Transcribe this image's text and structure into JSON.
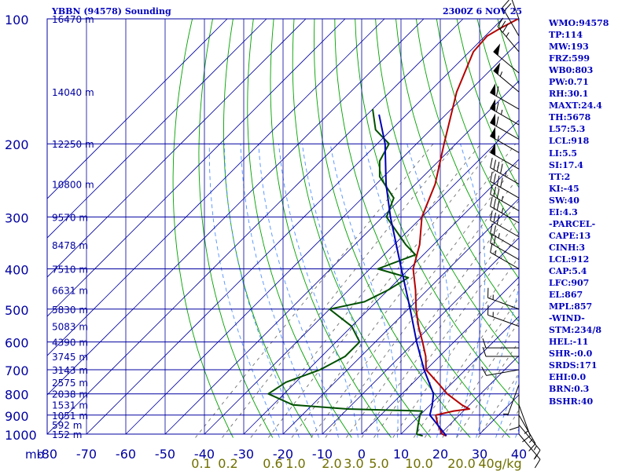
{
  "header": {
    "station_title": "YBBN (94578) Sounding",
    "valid_time": "2300Z  6 NOV 25"
  },
  "indices": [
    "WMO:94578",
    "TP:114",
    "MW:193",
    "FRZ:599",
    "WB0:803",
    "PW:0.71",
    "RH:30.1",
    "MAXT:24.4",
    "TH:5678",
    "L57:5.3",
    "LCL:918",
    "LI:5.5",
    "SI:17.4",
    "TT:2",
    "KI:-45",
    "SW:40",
    "EI:4.3",
    "-PARCEL-",
    "CAPE:13",
    "CINH:3",
    "LCL:912",
    "CAP:5.4",
    "LFC:907",
    "EL:867",
    "MPL:857",
    "-WIND-",
    "STM:234/8",
    "HEL:-11",
    "SHR-:0.0",
    "SRDS:171",
    "EHI:0.0",
    "BRN:0.3",
    "BSHR:40"
  ],
  "chart_data": {
    "type": "line",
    "title": "YBBN (94578) Sounding",
    "x_axis": {
      "label": "",
      "unit_label": "mb",
      "range": [
        -80,
        40
      ],
      "ticks": [
        -80,
        -70,
        -60,
        -50,
        -40,
        -30,
        -20,
        -10,
        0,
        10,
        20,
        30,
        40
      ],
      "tick_labels": [
        "-80",
        "-70",
        "-60",
        "-50",
        "-40",
        "-30",
        "-20",
        "-10",
        "0",
        "10",
        "20",
        "30",
        "40"
      ]
    },
    "y_axis": {
      "label": "",
      "scale": "log",
      "range": [
        1000,
        100
      ],
      "ticks": [
        100,
        200,
        300,
        400,
        500,
        600,
        700,
        800,
        900,
        1000
      ],
      "tick_labels": [
        "100",
        "200",
        "300",
        "400",
        "500",
        "600",
        "700",
        "800",
        "900",
        "1000"
      ]
    },
    "height_labels": [
      {
        "p": 100,
        "text": "16470 m"
      },
      {
        "p": 150,
        "text": "14040 m"
      },
      {
        "p": 200,
        "text": "12250 m"
      },
      {
        "p": 250,
        "text": "10800 m"
      },
      {
        "p": 300,
        "text": "9570 m"
      },
      {
        "p": 350,
        "text": "8478 m"
      },
      {
        "p": 400,
        "text": "7510 m"
      },
      {
        "p": 450,
        "text": "6631 m"
      },
      {
        "p": 500,
        "text": "5830 m"
      },
      {
        "p": 550,
        "text": "5083 m"
      },
      {
        "p": 600,
        "text": "4390 m"
      },
      {
        "p": 650,
        "text": "3745 m"
      },
      {
        "p": 700,
        "text": "3143 m"
      },
      {
        "p": 750,
        "text": "2575 m"
      },
      {
        "p": 800,
        "text": "2038 m"
      },
      {
        "p": 850,
        "text": "1531 m"
      },
      {
        "p": 900,
        "text": "1051 m"
      },
      {
        "p": 950,
        "text": "592 m"
      },
      {
        "p": 1000,
        "text": "152 m"
      }
    ],
    "mixing_ratio_labels": [
      {
        "w": 0.1,
        "text": "0.1"
      },
      {
        "w": 0.2,
        "text": "0.2"
      },
      {
        "w": 0.6,
        "text": "0.6"
      },
      {
        "w": 1.0,
        "text": "1.0"
      },
      {
        "w": 2.0,
        "text": "2.0"
      },
      {
        "w": 3.0,
        "text": "3.0"
      },
      {
        "w": 5.0,
        "text": "5.0"
      },
      {
        "w": 10.0,
        "text": "10.0"
      },
      {
        "w": 20.0,
        "text": "20.0"
      },
      {
        "w": 40.0,
        "text": "40g/kg"
      }
    ],
    "series": [
      {
        "name": "Temperature",
        "color": "#b40000",
        "points": [
          {
            "p": 1010,
            "t": 22.0
          },
          {
            "p": 1000,
            "t": 20.5
          },
          {
            "p": 950,
            "t": 17.0
          },
          {
            "p": 900,
            "t": 14.0
          },
          {
            "p": 880,
            "t": 17.5
          },
          {
            "p": 870,
            "t": 21.0
          },
          {
            "p": 850,
            "t": 18.0
          },
          {
            "p": 800,
            "t": 11.5
          },
          {
            "p": 750,
            "t": 6.0
          },
          {
            "p": 700,
            "t": 0.0
          },
          {
            "p": 650,
            "t": -3.5
          },
          {
            "p": 600,
            "t": -8.0
          },
          {
            "p": 550,
            "t": -13.0
          },
          {
            "p": 500,
            "t": -18.0
          },
          {
            "p": 450,
            "t": -23.0
          },
          {
            "p": 400,
            "t": -29.0
          },
          {
            "p": 350,
            "t": -33.5
          },
          {
            "p": 300,
            "t": -40.0
          },
          {
            "p": 250,
            "t": -45.0
          },
          {
            "p": 200,
            "t": -53.0
          },
          {
            "p": 150,
            "t": -63.0
          },
          {
            "p": 120,
            "t": -69.0
          },
          {
            "p": 110,
            "t": -69.5
          },
          {
            "p": 105,
            "t": -68.0
          },
          {
            "p": 100,
            "t": -66.0
          }
        ]
      },
      {
        "name": "Dewpoint",
        "color": "#005000",
        "points": [
          {
            "p": 1010,
            "t": 16.0
          },
          {
            "p": 1000,
            "t": 14.0
          },
          {
            "p": 950,
            "t": 12.0
          },
          {
            "p": 900,
            "t": 10.0
          },
          {
            "p": 880,
            "t": 9.5
          },
          {
            "p": 870,
            "t": -10.0
          },
          {
            "p": 850,
            "t": -25.0
          },
          {
            "p": 800,
            "t": -34.0
          },
          {
            "p": 750,
            "t": -32.5
          },
          {
            "p": 700,
            "t": -27.0
          },
          {
            "p": 650,
            "t": -24.0
          },
          {
            "p": 600,
            "t": -24.0
          },
          {
            "p": 550,
            "t": -30.0
          },
          {
            "p": 500,
            "t": -40.0
          },
          {
            "p": 480,
            "t": -33.0
          },
          {
            "p": 450,
            "t": -30.0
          },
          {
            "p": 420,
            "t": -28.0
          },
          {
            "p": 400,
            "t": -38.0
          },
          {
            "p": 370,
            "t": -32.0
          },
          {
            "p": 350,
            "t": -37.0
          },
          {
            "p": 300,
            "t": -49.0
          },
          {
            "p": 270,
            "t": -52.0
          },
          {
            "p": 240,
            "t": -61.0
          },
          {
            "p": 220,
            "t": -65.0
          },
          {
            "p": 200,
            "t": -67.0
          },
          {
            "p": 185,
            "t": -74.0
          },
          {
            "p": 165,
            "t": -80.0
          }
        ]
      },
      {
        "name": "Parcel",
        "color": "#0000b4",
        "points": [
          {
            "p": 1010,
            "t": 22.0
          },
          {
            "p": 900,
            "t": 12.5
          },
          {
            "p": 850,
            "t": 10.5
          },
          {
            "p": 800,
            "t": 8.0
          },
          {
            "p": 700,
            "t": -0.5
          },
          {
            "p": 600,
            "t": -9.5
          },
          {
            "p": 500,
            "t": -19.5
          },
          {
            "p": 400,
            "t": -32.0
          },
          {
            "p": 300,
            "t": -48.0
          },
          {
            "p": 250,
            "t": -57.5
          },
          {
            "p": 200,
            "t": -68.0
          },
          {
            "p": 170,
            "t": -77.0
          }
        ]
      }
    ],
    "wind_barbs": [
      {
        "p": 100,
        "dir": 340,
        "spd": 10
      },
      {
        "p": 110,
        "dir": 330,
        "spd": 20
      },
      {
        "p": 120,
        "dir": 320,
        "spd": 35
      },
      {
        "p": 135,
        "dir": 310,
        "spd": 50
      },
      {
        "p": 150,
        "dir": 310,
        "spd": 55
      },
      {
        "p": 165,
        "dir": 300,
        "spd": 60
      },
      {
        "p": 180,
        "dir": 300,
        "spd": 65
      },
      {
        "p": 195,
        "dir": 300,
        "spd": 60
      },
      {
        "p": 210,
        "dir": 300,
        "spd": 55
      },
      {
        "p": 230,
        "dir": 300,
        "spd": 50
      },
      {
        "p": 250,
        "dir": 300,
        "spd": 45
      },
      {
        "p": 270,
        "dir": 300,
        "spd": 40
      },
      {
        "p": 290,
        "dir": 300,
        "spd": 35
      },
      {
        "p": 310,
        "dir": 300,
        "spd": 35
      },
      {
        "p": 335,
        "dir": 300,
        "spd": 30
      },
      {
        "p": 360,
        "dir": 300,
        "spd": 25
      },
      {
        "p": 380,
        "dir": 300,
        "spd": 20
      },
      {
        "p": 400,
        "dir": 300,
        "spd": 15
      },
      {
        "p": 500,
        "dir": 290,
        "spd": 15
      },
      {
        "p": 550,
        "dir": 290,
        "spd": 15
      },
      {
        "p": 620,
        "dir": 270,
        "spd": 10
      },
      {
        "p": 650,
        "dir": 270,
        "spd": 10
      },
      {
        "p": 700,
        "dir": 260,
        "spd": 10
      },
      {
        "p": 760,
        "dir": 200,
        "spd": 5
      },
      {
        "p": 800,
        "dir": 180,
        "spd": 10
      },
      {
        "p": 850,
        "dir": 160,
        "spd": 15
      },
      {
        "p": 900,
        "dir": 150,
        "spd": 15
      },
      {
        "p": 950,
        "dir": 140,
        "spd": 15
      },
      {
        "p": 1000,
        "dir": 140,
        "spd": 15
      }
    ],
    "grid": true
  },
  "colors": {
    "isobar_isotherm": "#0000a0",
    "dry_adiabat": "#00a000",
    "moist_adiabat": "#5090ff",
    "mixing_ratio": "#707070",
    "header_text": "#0000c0",
    "axis_text": "#0000a0",
    "mixing_ratio_text": "#707000"
  }
}
